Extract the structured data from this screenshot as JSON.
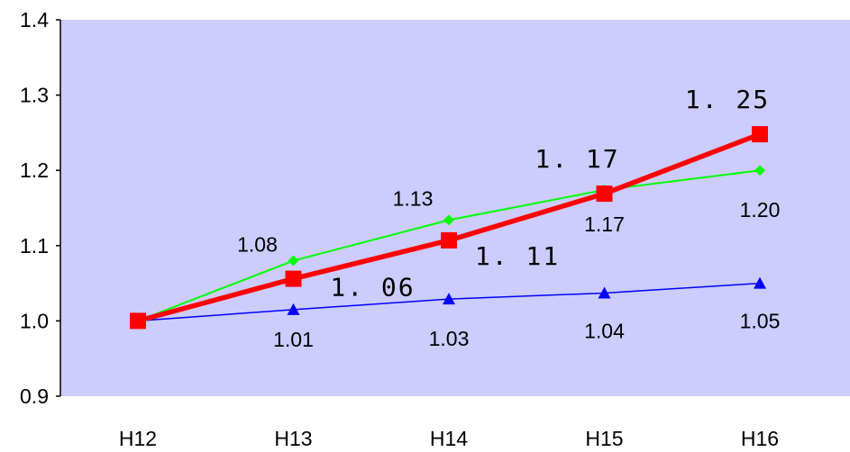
{
  "chart_data": {
    "type": "line",
    "categories": [
      "H12",
      "H13",
      "H14",
      "H15",
      "H16"
    ],
    "ylim": [
      0.9,
      1.4
    ],
    "yticks": [
      "0.9",
      "1.0",
      "1.1",
      "1.2",
      "1.3",
      "1.4"
    ],
    "grid": false,
    "plot_background": "#ccccff",
    "series": [
      {
        "color": "#00ff00",
        "marker": "diamond",
        "values": [
          1.0,
          1.08,
          1.134,
          1.174,
          1.2
        ],
        "labels": [
          "",
          "1.08",
          "1.13",
          "1.17",
          "1.20"
        ]
      },
      {
        "color": "#0000ff",
        "marker": "triangle",
        "values": [
          1.0,
          1.015,
          1.029,
          1.037,
          1.05
        ],
        "labels": [
          "",
          "1.01",
          "1.03",
          "1.04",
          "1.05"
        ]
      },
      {
        "color": "#ff0000",
        "marker": "square",
        "values": [
          1.0,
          1.056,
          1.107,
          1.169,
          1.248
        ],
        "labels": [
          "",
          "1. 06",
          "1. 11",
          "1. 17",
          "1. 25"
        ]
      }
    ]
  }
}
